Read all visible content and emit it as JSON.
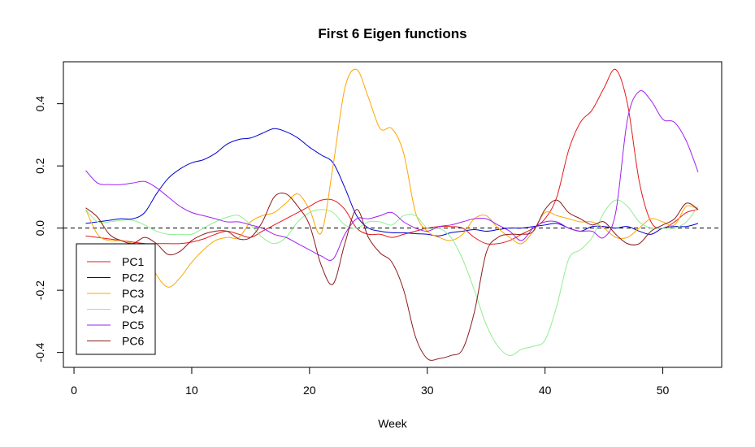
{
  "chart_data": {
    "type": "line",
    "title": "First 6 Eigen functions",
    "xlabel": "Week",
    "ylabel": "",
    "xlim": [
      -0.9,
      55.0
    ],
    "ylim": [
      -0.448,
      0.535
    ],
    "xticks": [
      0,
      10,
      20,
      30,
      40,
      50
    ],
    "yticks": [
      -0.4,
      -0.2,
      0.0,
      0.2,
      0.4
    ],
    "ytick_labels": [
      "-0.4",
      "-0.2",
      "0.0",
      "0.2",
      "0.4"
    ],
    "reference_line": {
      "y": 0.0,
      "style": "dashed",
      "color": "#000000"
    },
    "grid": false,
    "legend_position": "bottom-left",
    "series": [
      {
        "name": "PC1",
        "color": "#E41A1C",
        "x": [
          1,
          2,
          3,
          4,
          5,
          6,
          7,
          8,
          9,
          10,
          11,
          12,
          13,
          14,
          15,
          16,
          17,
          18,
          19,
          20,
          21,
          22,
          23,
          24,
          25,
          26,
          27,
          28,
          29,
          30,
          31,
          32,
          33,
          34,
          35,
          36,
          37,
          38,
          39,
          40,
          41,
          42,
          43,
          44,
          45,
          46,
          47,
          48,
          49,
          50,
          51,
          52,
          53
        ],
        "y": [
          -0.025,
          -0.03,
          -0.035,
          -0.04,
          -0.045,
          -0.05,
          -0.05,
          -0.05,
          -0.05,
          -0.045,
          -0.035,
          -0.02,
          -0.01,
          -0.02,
          -0.03,
          -0.01,
          0.01,
          0.03,
          0.05,
          0.07,
          0.09,
          0.09,
          0.06,
          0.0,
          -0.02,
          -0.02,
          -0.03,
          -0.02,
          -0.01,
          0.0,
          0.005,
          0.005,
          0.0,
          -0.03,
          -0.05,
          -0.05,
          -0.04,
          -0.02,
          0.0,
          0.03,
          0.1,
          0.25,
          0.34,
          0.38,
          0.45,
          0.51,
          0.4,
          0.15,
          0.02,
          0.0,
          0.02,
          0.05,
          0.06
        ]
      },
      {
        "name": "PC2",
        "color": "#0000CD",
        "x": [
          1,
          2,
          3,
          4,
          5,
          6,
          7,
          8,
          9,
          10,
          11,
          12,
          13,
          14,
          15,
          16,
          17,
          18,
          19,
          20,
          21,
          22,
          23,
          24,
          25,
          26,
          27,
          28,
          29,
          30,
          31,
          32,
          33,
          34,
          35,
          36,
          37,
          38,
          39,
          40,
          41,
          42,
          43,
          44,
          45,
          46,
          47,
          48,
          49,
          50,
          51,
          52,
          53
        ],
        "y": [
          0.015,
          0.02,
          0.025,
          0.03,
          0.03,
          0.05,
          0.11,
          0.16,
          0.19,
          0.21,
          0.22,
          0.24,
          0.27,
          0.285,
          0.29,
          0.305,
          0.32,
          0.31,
          0.29,
          0.26,
          0.235,
          0.21,
          0.13,
          0.04,
          0.0,
          -0.01,
          -0.015,
          -0.015,
          -0.018,
          -0.02,
          -0.025,
          -0.015,
          -0.01,
          -0.005,
          -0.01,
          -0.005,
          0.0,
          0.0,
          0.005,
          0.01,
          0.015,
          0.0,
          -0.01,
          0.005,
          0.005,
          0.0,
          0.005,
          -0.01,
          -0.02,
          0.0,
          0.005,
          0.005,
          0.015
        ]
      },
      {
        "name": "PC3",
        "color": "#FFA500",
        "x": [
          1,
          2,
          3,
          4,
          5,
          6,
          7,
          8,
          9,
          10,
          11,
          12,
          13,
          14,
          15,
          16,
          17,
          18,
          19,
          20,
          21,
          22,
          23,
          24,
          25,
          26,
          27,
          28,
          29,
          30,
          31,
          32,
          33,
          34,
          35,
          36,
          37,
          38,
          39,
          40,
          41,
          42,
          43,
          44,
          45,
          46,
          47,
          48,
          49,
          50,
          51,
          52,
          53
        ],
        "y": [
          0.06,
          -0.02,
          -0.04,
          -0.04,
          -0.05,
          -0.07,
          -0.15,
          -0.19,
          -0.16,
          -0.11,
          -0.07,
          -0.04,
          -0.03,
          -0.03,
          0.02,
          0.04,
          0.05,
          0.08,
          0.11,
          0.06,
          -0.015,
          0.2,
          0.45,
          0.51,
          0.42,
          0.32,
          0.32,
          0.24,
          0.05,
          -0.01,
          -0.03,
          -0.04,
          -0.02,
          0.03,
          0.04,
          0.0,
          -0.03,
          -0.05,
          -0.01,
          0.05,
          0.04,
          0.03,
          0.02,
          0.02,
          0.0,
          -0.03,
          -0.03,
          0.0,
          0.03,
          0.02,
          0.01,
          0.07,
          0.06
        ]
      },
      {
        "name": "PC4",
        "color": "#90EE90",
        "x": [
          1,
          2,
          3,
          4,
          5,
          6,
          7,
          8,
          9,
          10,
          11,
          12,
          13,
          14,
          15,
          16,
          17,
          18,
          19,
          20,
          21,
          22,
          23,
          24,
          25,
          26,
          27,
          28,
          29,
          30,
          31,
          32,
          33,
          34,
          35,
          36,
          37,
          38,
          39,
          40,
          41,
          42,
          43,
          44,
          45,
          46,
          47,
          48,
          49,
          50,
          51,
          52,
          53
        ],
        "y": [
          0.06,
          0.02,
          0.02,
          0.025,
          0.025,
          0.01,
          -0.01,
          -0.02,
          -0.02,
          -0.02,
          0.0,
          0.02,
          0.035,
          0.04,
          0.01,
          -0.03,
          -0.05,
          -0.03,
          0.02,
          0.05,
          0.06,
          0.05,
          0.01,
          0.0,
          0.02,
          0.02,
          0.01,
          0.04,
          0.04,
          0.0,
          0.0,
          -0.03,
          -0.1,
          -0.2,
          -0.31,
          -0.38,
          -0.41,
          -0.39,
          -0.38,
          -0.36,
          -0.25,
          -0.1,
          -0.07,
          -0.03,
          0.05,
          0.09,
          0.07,
          0.02,
          0.0,
          0.0,
          0.0,
          0.02,
          0.07
        ]
      },
      {
        "name": "PC5",
        "color": "#A020F0",
        "x": [
          1,
          2,
          3,
          4,
          5,
          6,
          7,
          8,
          9,
          10,
          11,
          12,
          13,
          14,
          15,
          16,
          17,
          18,
          19,
          20,
          21,
          22,
          23,
          24,
          25,
          26,
          27,
          28,
          29,
          30,
          31,
          32,
          33,
          34,
          35,
          36,
          37,
          38,
          39,
          40,
          41,
          42,
          43,
          44,
          45,
          46,
          47,
          48,
          49,
          50,
          51,
          52,
          53
        ],
        "y": [
          0.185,
          0.145,
          0.14,
          0.14,
          0.145,
          0.15,
          0.13,
          0.1,
          0.07,
          0.05,
          0.04,
          0.03,
          0.02,
          0.02,
          0.01,
          0.0,
          -0.02,
          -0.03,
          -0.05,
          -0.07,
          -0.09,
          -0.1,
          -0.02,
          0.03,
          0.03,
          0.04,
          0.05,
          0.02,
          0.0,
          -0.01,
          0.005,
          0.01,
          0.02,
          0.03,
          0.03,
          0.01,
          -0.01,
          -0.04,
          0.0,
          0.02,
          0.02,
          0.0,
          -0.01,
          -0.01,
          -0.03,
          0.05,
          0.35,
          0.44,
          0.41,
          0.35,
          0.34,
          0.28,
          0.18
        ]
      },
      {
        "name": "PC6",
        "color": "#8B1A1A",
        "x": [
          1,
          2,
          3,
          4,
          5,
          6,
          7,
          8,
          9,
          10,
          11,
          12,
          13,
          14,
          15,
          16,
          17,
          18,
          19,
          20,
          21,
          22,
          23,
          24,
          25,
          26,
          27,
          28,
          29,
          30,
          31,
          32,
          33,
          34,
          35,
          36,
          37,
          38,
          39,
          40,
          41,
          42,
          43,
          44,
          45,
          46,
          47,
          48,
          49,
          50,
          51,
          52,
          53
        ],
        "y": [
          0.065,
          0.035,
          -0.02,
          -0.04,
          -0.05,
          -0.03,
          -0.05,
          -0.085,
          -0.075,
          -0.04,
          -0.02,
          -0.01,
          -0.01,
          -0.035,
          -0.03,
          0.02,
          0.1,
          0.11,
          0.07,
          0.01,
          -0.12,
          -0.18,
          -0.05,
          0.06,
          -0.03,
          -0.08,
          -0.11,
          -0.2,
          -0.35,
          -0.42,
          -0.42,
          -0.41,
          -0.39,
          -0.27,
          -0.08,
          -0.03,
          -0.02,
          -0.02,
          -0.01,
          0.06,
          0.09,
          0.05,
          0.03,
          0.01,
          0.02,
          -0.02,
          -0.05,
          -0.05,
          -0.01,
          0.01,
          0.03,
          0.08,
          0.06
        ]
      }
    ]
  }
}
